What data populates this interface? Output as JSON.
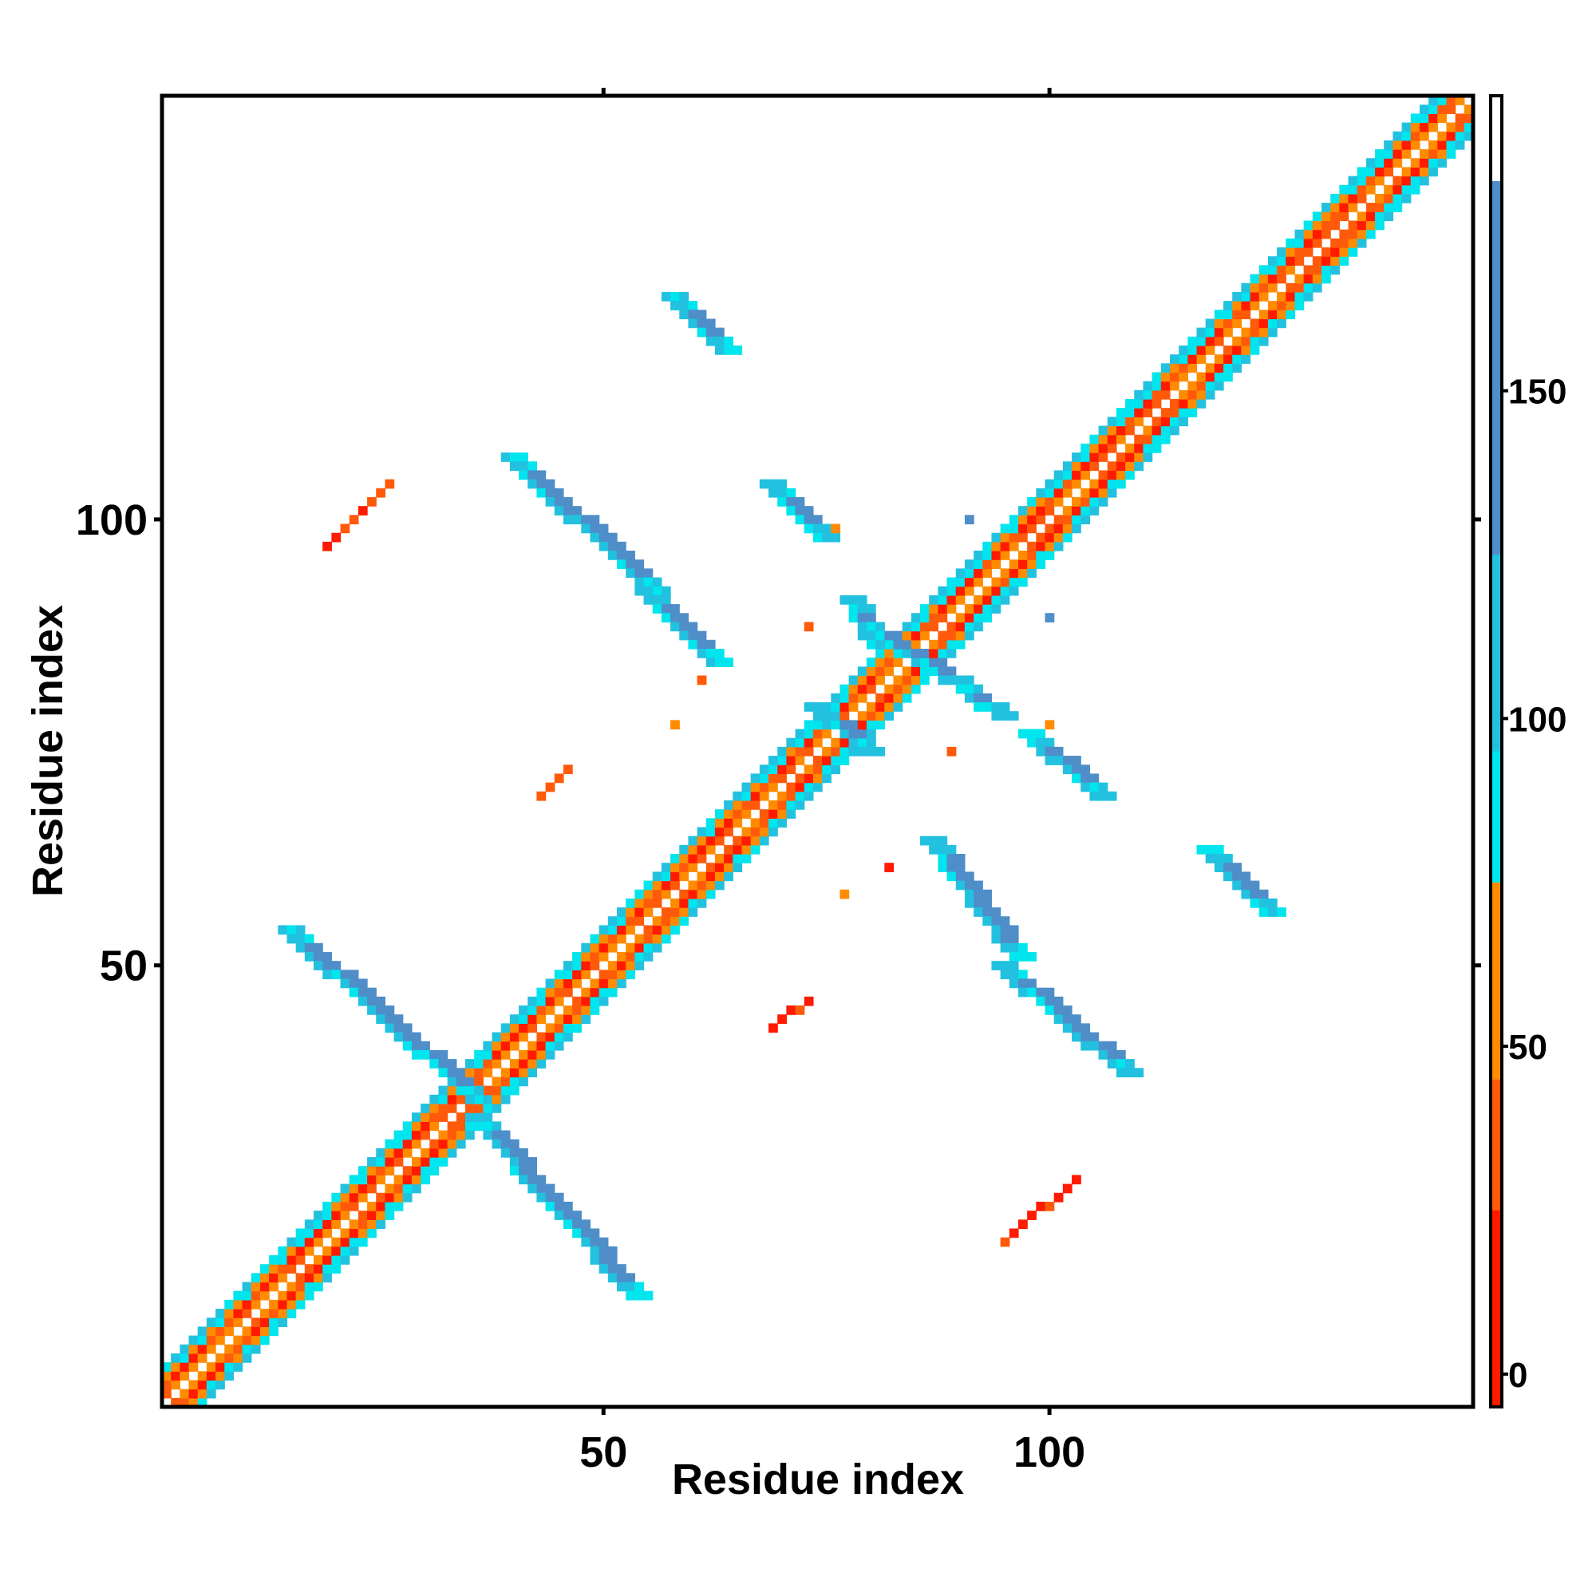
{
  "chart_data": {
    "type": "heatmap",
    "title": "",
    "xlabel": "Residue index",
    "ylabel": "Residue index",
    "xlim": [
      0.5,
      147.5
    ],
    "ylim": [
      0.5,
      147.5
    ],
    "xticks": [
      50,
      100
    ],
    "yticks": [
      50,
      100
    ],
    "grid": false,
    "colorbar": {
      "ticks": [
        0,
        50,
        100,
        150
      ],
      "range": [
        -5,
        195
      ],
      "bands": [
        {
          "from": -5,
          "to": 25,
          "color": "#ff1a00"
        },
        {
          "from": 25,
          "to": 45,
          "color": "#ff5a0a"
        },
        {
          "from": 45,
          "to": 75,
          "color": "#ff8c00"
        },
        {
          "from": 75,
          "to": 95,
          "color": "#00e5ee"
        },
        {
          "from": 95,
          "to": 125,
          "color": "#22c1e0"
        },
        {
          "from": 125,
          "to": 182,
          "color": "#4f8ec8"
        },
        {
          "from": 182,
          "to": 195,
          "color": "#ffffff"
        }
      ]
    },
    "diagonal": {
      "from": 1,
      "to": 147
    },
    "blue_bands": [
      {
        "x": [
          14,
          35
        ],
        "y": [
          54,
          35
        ]
      },
      {
        "x": [
          35,
          53
        ],
        "y": [
          33,
          13
        ]
      },
      {
        "x": [
          39,
          55
        ],
        "y": [
          107,
          92
        ]
      },
      {
        "x": [
          54,
          62
        ],
        "y": [
          92,
          84
        ]
      },
      {
        "x": [
          57,
          63
        ],
        "y": [
          125,
          119
        ]
      },
      {
        "x": [
          68,
          74
        ],
        "y": [
          104,
          98
        ]
      },
      {
        "x": [
          77,
          80
        ],
        "y": [
          91,
          86
        ]
      },
      {
        "x": [
          87,
          94
        ],
        "y": [
          83,
          78
        ]
      },
      {
        "x": [
          86,
          96
        ],
        "y": [
          64,
          51
        ]
      },
      {
        "x": [
          94,
          108
        ],
        "y": [
          50,
          38
        ]
      },
      {
        "x": [
          97,
          105
        ],
        "y": [
          76,
          69
        ]
      },
      {
        "x": [
          117,
          124
        ],
        "y": [
          63,
          56
        ]
      },
      {
        "x": [
          79,
          90
        ],
        "y": [
          88,
          81
        ]
      },
      {
        "x": [
          73,
          79
        ],
        "y": [
          79,
          74
        ]
      }
    ],
    "red_bands": [
      {
        "x": [
          19,
          26
        ],
        "y": [
          97,
          104
        ]
      },
      {
        "x": [
          43,
          46
        ],
        "y": [
          69,
          72
        ]
      },
      {
        "x": [
          69,
          73
        ],
        "y": [
          43,
          46
        ]
      },
      {
        "x": [
          95,
          103
        ],
        "y": [
          19,
          26
        ]
      }
    ],
    "scatter_dots": [
      {
        "x": 76,
        "y": 99,
        "v": 60
      },
      {
        "x": 91,
        "y": 100,
        "v": 150
      },
      {
        "x": 100,
        "y": 89,
        "v": 150
      },
      {
        "x": 73,
        "y": 88,
        "v": 40
      },
      {
        "x": 61,
        "y": 82,
        "v": 30
      },
      {
        "x": 58,
        "y": 77,
        "v": 50
      },
      {
        "x": 89,
        "y": 74,
        "v": 40
      },
      {
        "x": 100,
        "y": 77,
        "v": 60
      },
      {
        "x": 82,
        "y": 61,
        "v": 10
      },
      {
        "x": 77,
        "y": 58,
        "v": 50
      }
    ]
  }
}
